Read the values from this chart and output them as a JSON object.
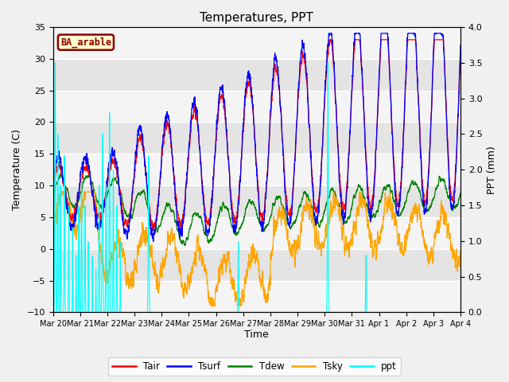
{
  "title": "Temperatures, PPT",
  "xlabel": "Time",
  "ylabel_left": "Temperature (C)",
  "ylabel_right": "PPT (mm)",
  "ylim_left": [
    -10,
    35
  ],
  "ylim_right": [
    0.0,
    4.0
  ],
  "legend_entries": [
    "Tair",
    "Tsurf",
    "Tdew",
    "Tsky",
    "ppt"
  ],
  "legend_colors": [
    "red",
    "blue",
    "green",
    "orange",
    "cyan"
  ],
  "box_label": "BA_arable",
  "background_color": "#f0f0f0",
  "plot_bg_color": "#e4e4e4",
  "xtick_labels": [
    "Mar 20",
    "Mar 21",
    "Mar 22",
    "Mar 23",
    "Mar 24",
    "Mar 25",
    "Mar 26",
    "Mar 27",
    "Mar 28",
    "Mar 29",
    "Mar 30",
    "Mar 31",
    "Apr 1",
    "Apr 2",
    "Apr 3",
    "Apr 4"
  ],
  "yticks_left": [
    -10,
    -5,
    0,
    5,
    10,
    15,
    20,
    25,
    30,
    35
  ],
  "yticks_right": [
    0.0,
    0.5,
    1.0,
    1.5,
    2.0,
    2.5,
    3.0,
    3.5,
    4.0
  ],
  "n_days": 15,
  "pts_per_day": 288
}
